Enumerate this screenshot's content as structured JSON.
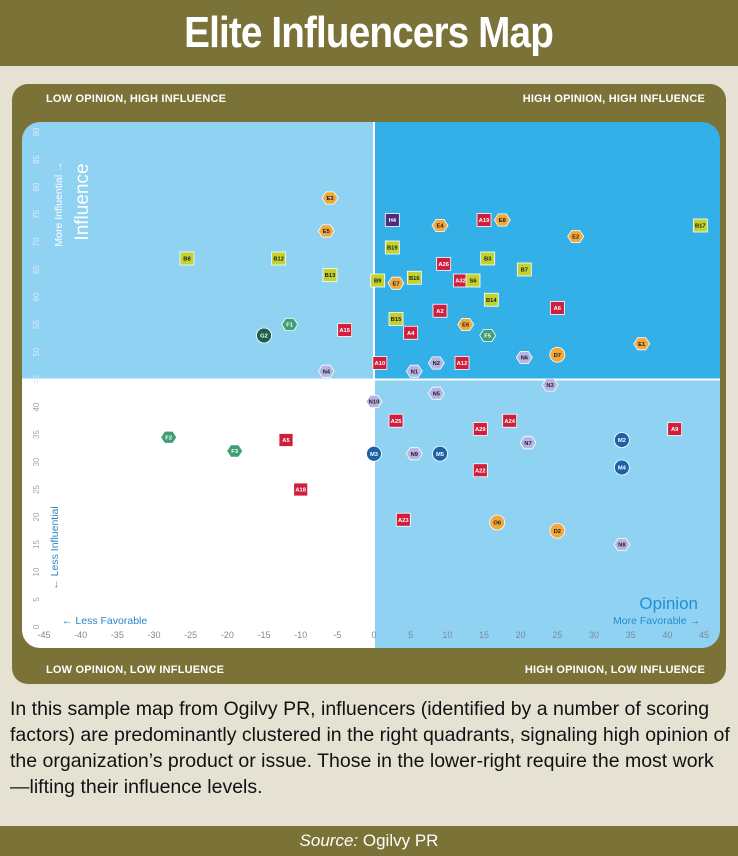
{
  "title": "Elite Influencers Map",
  "quadrants": {
    "top_left": "LOW OPINION, HIGH INFLUENCE",
    "top_right": "HIGH OPINION, HIGH INFLUENCE",
    "bottom_left": "LOW OPINION, LOW INFLUENCE",
    "bottom_right": "HIGH OPINION, LOW INFLUENCE"
  },
  "caption": "In this sample map from Ogilvy PR, influencers (identified by a number of scoring factors) are predominantly clustered in the right quadrants, signaling high opinion of the organization’s product or issue. Those in the lower-right require the most work—lifting their influence levels.",
  "source": {
    "label": "Source:",
    "value": "Ogilvy PR"
  },
  "colors": {
    "frame": "#7b7238",
    "quadrant_upper_left": "#8fd2f2",
    "quadrant_upper_right": "#34b0e8",
    "quadrant_lower_left": "#ffffff",
    "quadrant_lower_right": "#8fd2f2",
    "red": "#d01f3c",
    "yellow_green": "#c2d330",
    "orange": "#f0a93c",
    "dark_green": "#1e5e4f",
    "green": "#3f9e74",
    "lavender": "#b6b4e2",
    "blue": "#1c63a6",
    "purple": "#4d2b7e"
  },
  "chart_data": {
    "type": "scatter",
    "xlabel": "Opinion",
    "ylabel": "Influence",
    "x_left_label": "← Less Favorable",
    "x_right_label": "More Favorable →",
    "y_top_label": "More Influential →",
    "y_bottom_label": "← Less Influential",
    "xlim": [
      -45,
      45
    ],
    "ylim": [
      0,
      90
    ],
    "x_ticks": [
      -45,
      -40,
      -35,
      -30,
      -25,
      -20,
      -15,
      -10,
      -5,
      0,
      5,
      10,
      15,
      20,
      25,
      30,
      35,
      40,
      45
    ],
    "y_ticks": [
      0,
      5,
      10,
      15,
      20,
      25,
      30,
      35,
      40,
      45,
      50,
      55,
      60,
      65,
      70,
      75,
      80,
      85,
      90
    ],
    "points": [
      {
        "label": "E3",
        "x": -6,
        "y": 78,
        "shape": "hexagon",
        "color": "orange"
      },
      {
        "label": "E5",
        "x": -6.5,
        "y": 72,
        "shape": "hexagon",
        "color": "orange"
      },
      {
        "label": "H4",
        "x": 2.5,
        "y": 74,
        "shape": "square",
        "color": "purple"
      },
      {
        "label": "E4",
        "x": 9,
        "y": 73,
        "shape": "hexagon",
        "color": "orange"
      },
      {
        "label": "A19",
        "x": 15,
        "y": 74,
        "shape": "square",
        "color": "red"
      },
      {
        "label": "E8",
        "x": 17.5,
        "y": 74,
        "shape": "hexagon",
        "color": "orange"
      },
      {
        "label": "E2",
        "x": 27.5,
        "y": 71,
        "shape": "hexagon",
        "color": "orange"
      },
      {
        "label": "B17",
        "x": 44.5,
        "y": 73,
        "shape": "square",
        "color": "yellow_green"
      },
      {
        "label": "B8",
        "x": -25.5,
        "y": 67,
        "shape": "square",
        "color": "yellow_green"
      },
      {
        "label": "B12",
        "x": -13,
        "y": 67,
        "shape": "square",
        "color": "yellow_green"
      },
      {
        "label": "B19",
        "x": 2.5,
        "y": 69,
        "shape": "square",
        "color": "yellow_green"
      },
      {
        "label": "B3",
        "x": 15.5,
        "y": 67,
        "shape": "square",
        "color": "yellow_green"
      },
      {
        "label": "B13",
        "x": -6,
        "y": 64,
        "shape": "square",
        "color": "yellow_green"
      },
      {
        "label": "A26",
        "x": 9.5,
        "y": 66,
        "shape": "square",
        "color": "red"
      },
      {
        "label": "B7",
        "x": 20.5,
        "y": 65,
        "shape": "square",
        "color": "yellow_green"
      },
      {
        "label": "B9",
        "x": 0.5,
        "y": 63,
        "shape": "square",
        "color": "yellow_green"
      },
      {
        "label": "E7",
        "x": 3,
        "y": 62.5,
        "shape": "hexagon",
        "color": "orange"
      },
      {
        "label": "B16",
        "x": 5.5,
        "y": 63.5,
        "shape": "square",
        "color": "yellow_green"
      },
      {
        "label": "A32",
        "x": 11.8,
        "y": 63,
        "shape": "square",
        "color": "red"
      },
      {
        "label": "S6",
        "x": 13.5,
        "y": 63,
        "shape": "square",
        "color": "yellow_green"
      },
      {
        "label": "B14",
        "x": 16,
        "y": 59.5,
        "shape": "square",
        "color": "yellow_green"
      },
      {
        "label": "A2",
        "x": 9,
        "y": 57.5,
        "shape": "square",
        "color": "red"
      },
      {
        "label": "A6",
        "x": 25,
        "y": 58,
        "shape": "square",
        "color": "red"
      },
      {
        "label": "F1",
        "x": -11.5,
        "y": 55,
        "shape": "hexagon",
        "color": "green"
      },
      {
        "label": "A15",
        "x": -4,
        "y": 54,
        "shape": "square",
        "color": "red"
      },
      {
        "label": "B15",
        "x": 3,
        "y": 56,
        "shape": "square",
        "color": "yellow_green"
      },
      {
        "label": "E6",
        "x": 12.5,
        "y": 55,
        "shape": "hexagon",
        "color": "orange"
      },
      {
        "label": "G2",
        "x": -15,
        "y": 53,
        "shape": "circle",
        "color": "dark_green"
      },
      {
        "label": "A4",
        "x": 5,
        "y": 53.5,
        "shape": "square",
        "color": "red"
      },
      {
        "label": "F5",
        "x": 15.5,
        "y": 53,
        "shape": "hexagon",
        "color": "green"
      },
      {
        "label": "E1",
        "x": 36.5,
        "y": 51.5,
        "shape": "hexagon",
        "color": "orange"
      },
      {
        "label": "A10",
        "x": 0.8,
        "y": 48,
        "shape": "square",
        "color": "red"
      },
      {
        "label": "N2",
        "x": 8.5,
        "y": 48,
        "shape": "hexagon",
        "color": "lavender"
      },
      {
        "label": "A12",
        "x": 12,
        "y": 48,
        "shape": "square",
        "color": "red"
      },
      {
        "label": "N6",
        "x": 20.5,
        "y": 49,
        "shape": "hexagon",
        "color": "lavender"
      },
      {
        "label": "D7",
        "x": 25,
        "y": 49.5,
        "shape": "circle",
        "color": "orange"
      },
      {
        "label": "N4",
        "x": -6.5,
        "y": 46.5,
        "shape": "hexagon",
        "color": "lavender"
      },
      {
        "label": "N1",
        "x": 5.5,
        "y": 46.5,
        "shape": "hexagon",
        "color": "lavender"
      },
      {
        "label": "N3",
        "x": 24,
        "y": 44,
        "shape": "hexagon",
        "color": "lavender"
      },
      {
        "label": "N5",
        "x": 8.5,
        "y": 42.5,
        "shape": "hexagon",
        "color": "lavender"
      },
      {
        "label": "N10",
        "x": 0,
        "y": 41,
        "shape": "hexagon",
        "color": "lavender"
      },
      {
        "label": "A25",
        "x": 3,
        "y": 37.5,
        "shape": "square",
        "color": "red"
      },
      {
        "label": "A24",
        "x": 18.5,
        "y": 37.5,
        "shape": "square",
        "color": "red"
      },
      {
        "label": "A29",
        "x": 14.5,
        "y": 36,
        "shape": "square",
        "color": "red"
      },
      {
        "label": "A9",
        "x": 41,
        "y": 36,
        "shape": "square",
        "color": "red"
      },
      {
        "label": "F2",
        "x": -28,
        "y": 34.5,
        "shape": "hexagon",
        "color": "green"
      },
      {
        "label": "A5",
        "x": -12,
        "y": 34,
        "shape": "square",
        "color": "red"
      },
      {
        "label": "N7",
        "x": 21,
        "y": 33.5,
        "shape": "hexagon",
        "color": "lavender"
      },
      {
        "label": "M2",
        "x": 33.8,
        "y": 34,
        "shape": "circle",
        "color": "blue"
      },
      {
        "label": "F3",
        "x": -19,
        "y": 32,
        "shape": "hexagon",
        "color": "green"
      },
      {
        "label": "M3",
        "x": 0,
        "y": 31.5,
        "shape": "circle",
        "color": "blue"
      },
      {
        "label": "N9",
        "x": 5.5,
        "y": 31.5,
        "shape": "hexagon",
        "color": "lavender"
      },
      {
        "label": "M5",
        "x": 9,
        "y": 31.5,
        "shape": "circle",
        "color": "blue"
      },
      {
        "label": "A22",
        "x": 14.5,
        "y": 28.5,
        "shape": "square",
        "color": "red"
      },
      {
        "label": "M4",
        "x": 33.8,
        "y": 29,
        "shape": "circle",
        "color": "blue"
      },
      {
        "label": "A18",
        "x": -10,
        "y": 25,
        "shape": "square",
        "color": "red"
      },
      {
        "label": "A23",
        "x": 4,
        "y": 19.5,
        "shape": "square",
        "color": "red"
      },
      {
        "label": "O6",
        "x": 16.8,
        "y": 19,
        "shape": "circle",
        "color": "orange"
      },
      {
        "label": "D2",
        "x": 25,
        "y": 17.5,
        "shape": "circle",
        "color": "orange"
      },
      {
        "label": "N8",
        "x": 33.8,
        "y": 15,
        "shape": "hexagon",
        "color": "lavender"
      }
    ]
  }
}
